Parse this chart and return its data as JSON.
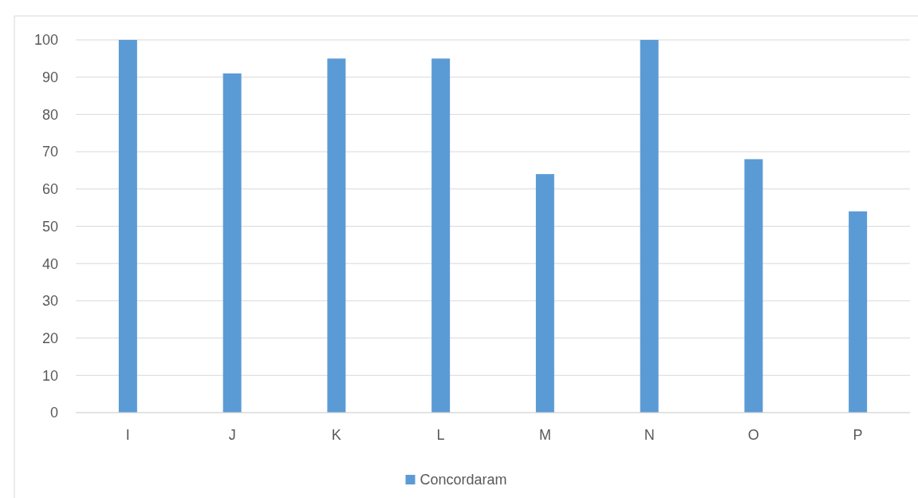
{
  "chart_data": {
    "type": "bar",
    "categories": [
      "I",
      "J",
      "K",
      "L",
      "M",
      "N",
      "O",
      "P"
    ],
    "series": [
      {
        "name": "Concordaram",
        "color": "#5b9bd5",
        "values": [
          100,
          91,
          95,
          95,
          64,
          100,
          68,
          54
        ]
      }
    ],
    "ylim": [
      0,
      100
    ],
    "yticks": [
      0,
      10,
      20,
      30,
      40,
      50,
      60,
      70,
      80,
      90,
      100
    ],
    "grid": "y",
    "legend": "bottom"
  }
}
